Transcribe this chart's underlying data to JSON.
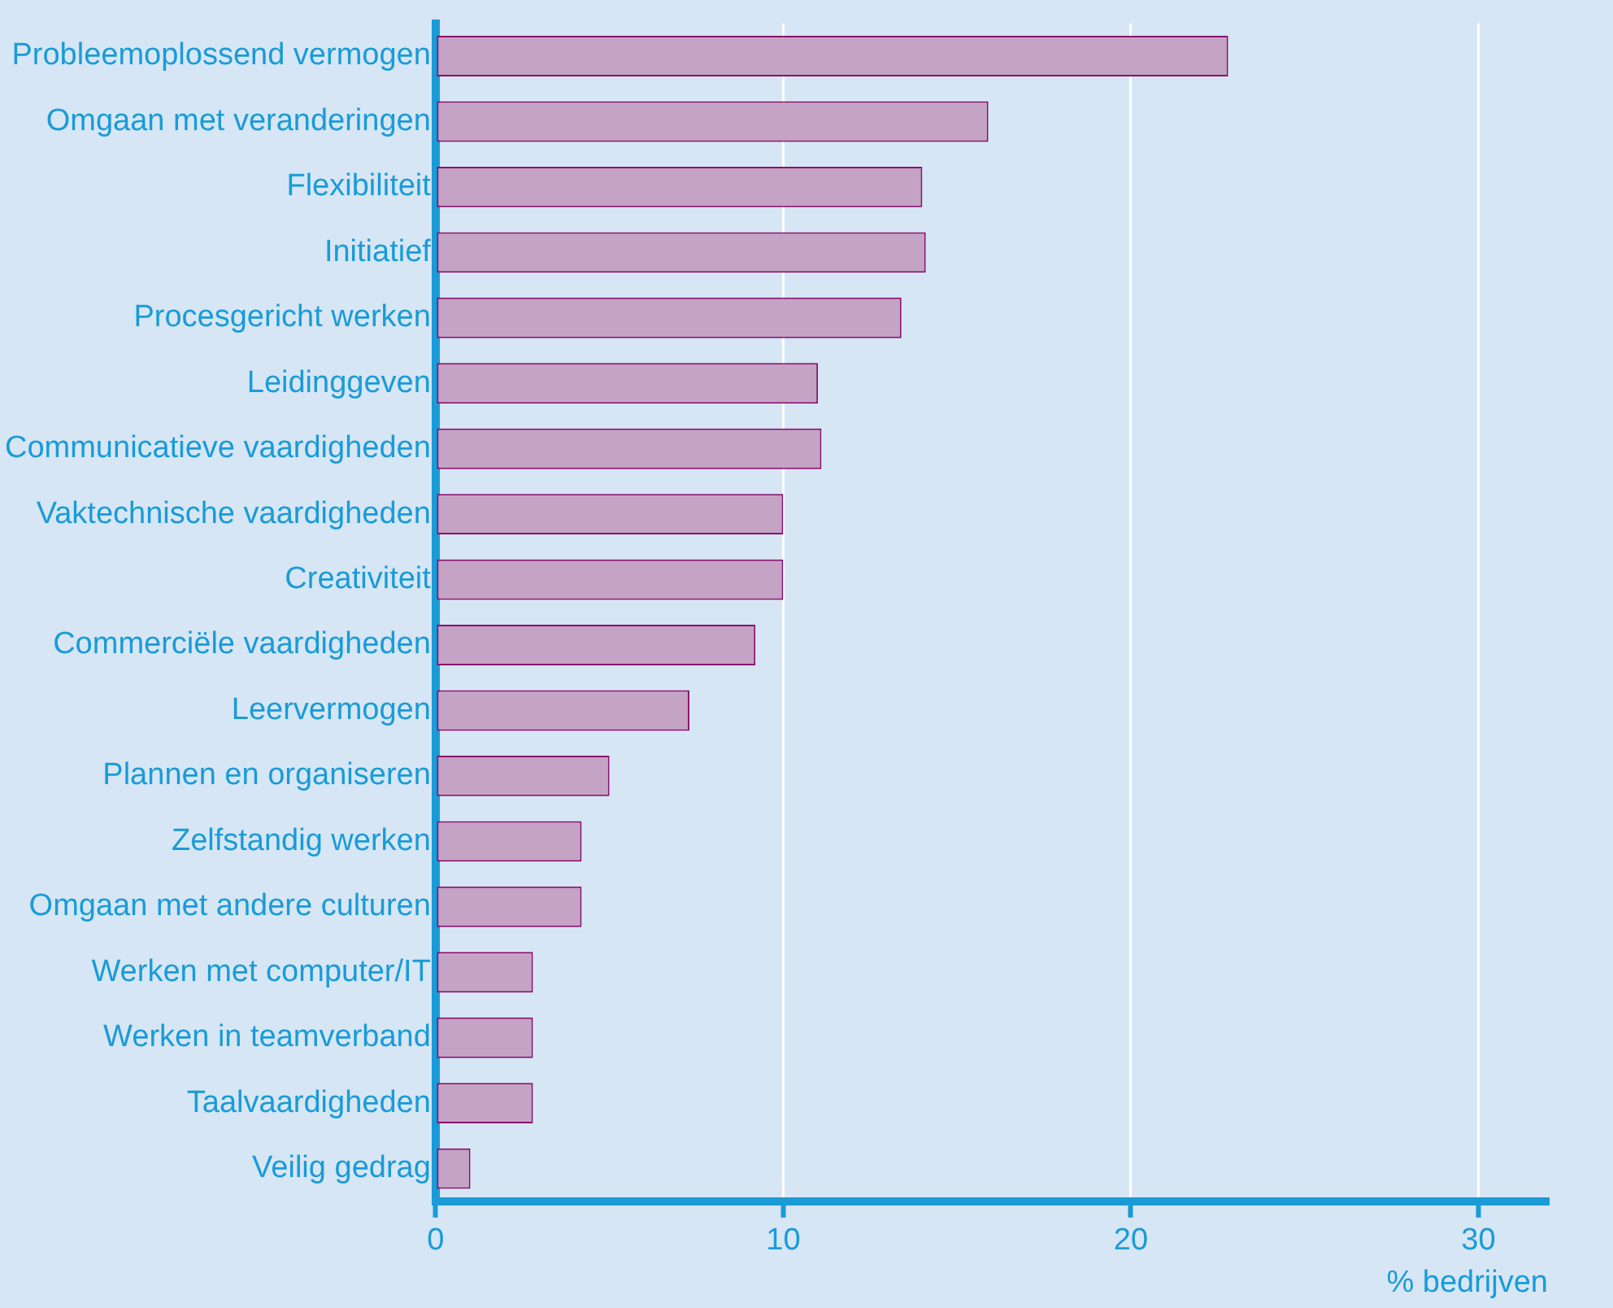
{
  "chart_data": {
    "type": "bar",
    "orientation": "horizontal",
    "xlabel": "% bedrijven",
    "categories": [
      "Probleemoplossend vermogen",
      "Omgaan met veranderingen",
      "Flexibiliteit",
      "Initiatief",
      "Procesgericht werken",
      "Leidinggeven",
      "Communicatieve vaardigheden",
      "Vaktechnische vaardigheden",
      "Creativiteit",
      "Commerciële vaardigheden",
      "Leervermogen",
      "Plannen en organiseren",
      "Zelfstandig werken",
      "Omgaan met andere culturen",
      "Werken met computer/IT",
      "Werken in teamverband",
      "Taalvaardigheden",
      "Veilig gedrag"
    ],
    "values": [
      22.8,
      15.9,
      14,
      14.1,
      13.4,
      11,
      11.1,
      10,
      10,
      9.2,
      7.3,
      5,
      4.2,
      4.2,
      2.8,
      2.8,
      2.8,
      1
    ],
    "color": "#c4a3c4",
    "xlim": [
      0,
      32
    ],
    "xticks": [
      0,
      10,
      20,
      30
    ],
    "grid": "x"
  }
}
